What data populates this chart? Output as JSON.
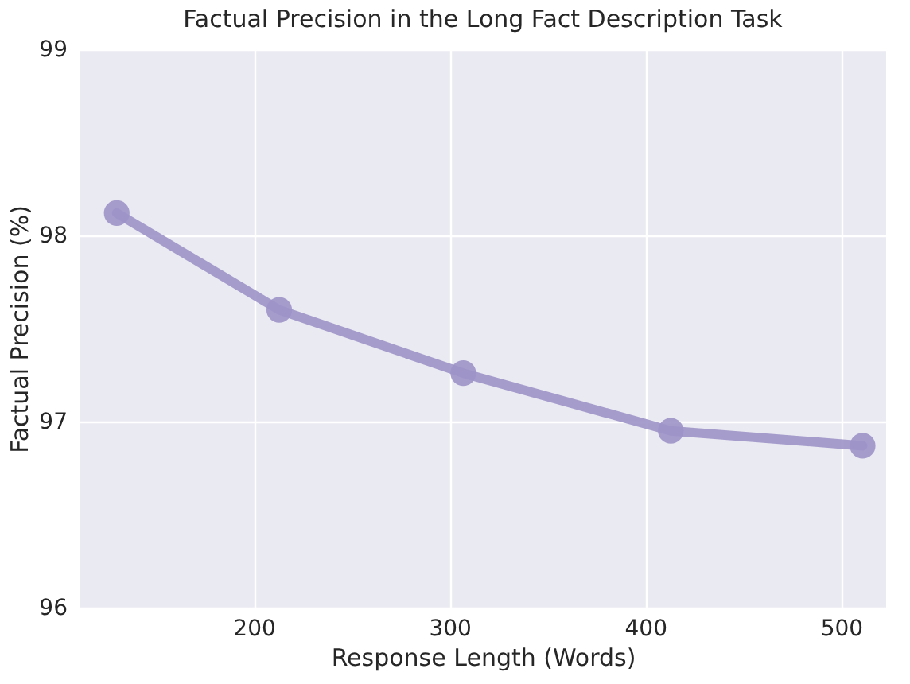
{
  "chart_data": {
    "type": "line",
    "title": "Factual Precision in the Long Fact Description Task",
    "xlabel": "Response Length (Words)",
    "ylabel": "Factual Precision (%)",
    "x": [
      130,
      213,
      307,
      413,
      511
    ],
    "series": [
      {
        "color": "#9d93c8",
        "values": [
          98.12,
          97.6,
          97.26,
          96.95,
          96.87
        ]
      }
    ],
    "xlim": [
      111,
      523
    ],
    "xticks": [
      200,
      300,
      400,
      500
    ],
    "ylim": [
      96,
      99
    ],
    "yticks": [
      96,
      97,
      98,
      99
    ],
    "grid": true,
    "marker": "circle",
    "line_style": "solid"
  }
}
